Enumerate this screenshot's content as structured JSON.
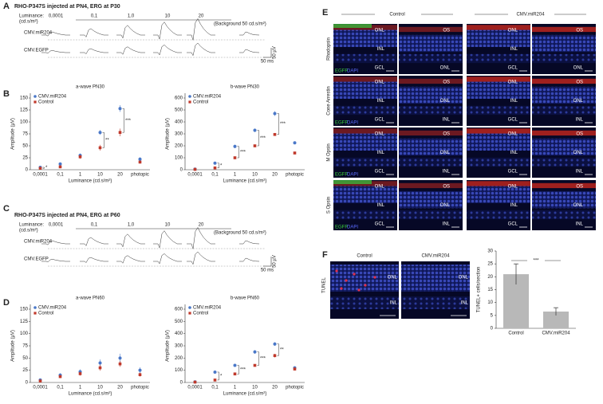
{
  "panel_labels": [
    "A",
    "B",
    "C",
    "D",
    "E",
    "F"
  ],
  "erg": [
    {
      "title": "RHO-P347S injected at PN4, ERG at P30",
      "luminance_label": [
        "Luminance:",
        "(cd.s/m²)"
      ],
      "luminances": [
        "0,0001",
        "0,1",
        "1,0",
        "10",
        "20"
      ],
      "background": "(Background 50 cd.s/m²)",
      "rows": [
        "CMV.miR204",
        "CMV.EGFP"
      ],
      "scale_y": "50 µV",
      "scale_x": "50 ms"
    },
    {
      "title": "RHO-P347S injected at PN4, ERG at P60",
      "luminance_label": [
        "Luminance:",
        "(cd.s/m²)"
      ],
      "luminances": [
        "0,0001",
        "0,1",
        "1,0",
        "10",
        "20"
      ],
      "background": "(Background 50 cd.s/m²)",
      "rows": [
        "CMV.miR204",
        "CMV.EGFP"
      ],
      "scale_y": "50 µV",
      "scale_x": "50 ms"
    }
  ],
  "chart_data": [
    {
      "type": "scatter",
      "title": "a-wave  PN30",
      "x_label": "Luminance (cd.s/m²)",
      "y_label": "Amplitude (µV)",
      "categories": [
        "0,0001",
        "0,1",
        "1",
        "10",
        "20",
        "photopic"
      ],
      "ylim": [
        0,
        150
      ],
      "yticks": [
        0,
        25,
        50,
        75,
        100,
        125,
        150
      ],
      "legend": "upper left",
      "series": [
        {
          "name": "CMV.miR204",
          "color": "#4a78c8",
          "values": [
            5,
            12,
            30,
            78,
            128,
            22
          ],
          "errors": [
            1,
            3,
            4,
            5,
            7,
            4
          ]
        },
        {
          "name": "Control",
          "color": "#c0392b",
          "values": [
            3,
            6,
            27,
            46,
            78,
            16
          ],
          "errors": [
            1,
            2,
            4,
            6,
            8,
            3
          ]
        }
      ],
      "significance": [
        "*",
        null,
        null,
        "**",
        "***",
        null
      ]
    },
    {
      "type": "scatter",
      "title": "b-wave  PN30",
      "x_label": "Luminance (cd.s/m²)",
      "y_label": "Amplitude (µV)",
      "categories": [
        "0,0001",
        "0,1",
        "1",
        "10",
        "20",
        "photopic"
      ],
      "ylim": [
        0,
        600
      ],
      "yticks": [
        0,
        100,
        200,
        300,
        400,
        500,
        600
      ],
      "legend": "upper left",
      "series": [
        {
          "name": "CMV.miR204",
          "color": "#4a78c8",
          "values": [
            5,
            55,
            195,
            330,
            470,
            225
          ],
          "errors": [
            3,
            10,
            15,
            15,
            20,
            12
          ]
        },
        {
          "name": "Control",
          "color": "#c0392b",
          "values": [
            3,
            15,
            100,
            200,
            295,
            140
          ],
          "errors": [
            2,
            5,
            8,
            8,
            10,
            10
          ]
        }
      ],
      "significance": [
        null,
        "*",
        "***",
        "***",
        "***",
        null
      ]
    },
    {
      "type": "scatter",
      "title": "a-wave  PN60",
      "x_label": "Luminance (cd.s/m²)",
      "y_label": "Amplitude (µV)",
      "categories": [
        "0,0001",
        "0,1",
        "1",
        "10",
        "20",
        "photopic"
      ],
      "ylim": [
        0,
        150
      ],
      "yticks": [
        0,
        25,
        50,
        75,
        100,
        125,
        150
      ],
      "legend": "upper left",
      "series": [
        {
          "name": "CMV.miR204",
          "color": "#4a78c8",
          "values": [
            5,
            15,
            22,
            40,
            50,
            25
          ],
          "errors": [
            1,
            4,
            5,
            7,
            9,
            6
          ]
        },
        {
          "name": "Control",
          "color": "#c0392b",
          "values": [
            3,
            12,
            18,
            30,
            38,
            16
          ],
          "errors": [
            1,
            3,
            4,
            6,
            6,
            4
          ]
        }
      ],
      "significance": [
        null,
        null,
        null,
        null,
        null,
        null
      ]
    },
    {
      "type": "scatter",
      "title": "b-wave  PN60",
      "x_label": "Luminance (cd.s/m²)",
      "y_label": "Amplitude (µV)",
      "categories": [
        "0,0001",
        "0,1",
        "1",
        "10",
        "20",
        "photopic"
      ],
      "ylim": [
        0,
        600
      ],
      "yticks": [
        0,
        100,
        200,
        300,
        400,
        500,
        600
      ],
      "legend": "upper left",
      "series": [
        {
          "name": "CMV.miR204",
          "color": "#4a78c8",
          "values": [
            5,
            85,
            140,
            250,
            315,
            120
          ],
          "errors": [
            3,
            12,
            12,
            15,
            15,
            12
          ]
        },
        {
          "name": "Control",
          "color": "#c0392b",
          "values": [
            3,
            20,
            70,
            140,
            220,
            110
          ],
          "errors": [
            2,
            6,
            8,
            8,
            15,
            10
          ]
        }
      ],
      "significance": [
        null,
        "*",
        "***",
        "***",
        "**",
        null
      ]
    },
    {
      "type": "bar",
      "y_label": "TUNEL+ cells/section",
      "categories": [
        "Control",
        "CMV.miR204"
      ],
      "values": [
        21,
        6.5
      ],
      "errors": [
        4,
        1.5
      ],
      "color": "#b8b8b8",
      "ylim": [
        0,
        30
      ],
      "yticks": [
        0,
        5,
        10,
        15,
        20,
        25,
        30
      ],
      "significance": "***"
    }
  ],
  "immuno": {
    "columns": [
      "Control",
      "CMV.miR204"
    ],
    "stain": [
      "EGFP",
      "DAPI"
    ],
    "rows": [
      {
        "name": "Rhodopsin",
        "left": [
          "ONL",
          "INL",
          "GCL"
        ],
        "right": [
          "OS",
          "ONL"
        ]
      },
      {
        "name": "Cone Arrestin",
        "left": [
          "ONL",
          "INL",
          "GCL"
        ],
        "right": [
          "OS",
          "ONL",
          "INL"
        ]
      },
      {
        "name": "M Opsin",
        "left": [
          "ONL",
          "INL",
          "GCL"
        ],
        "right": [
          "OS",
          "ONL",
          "INL"
        ]
      },
      {
        "name": "S Opsin",
        "left": [
          "ONL",
          "INL",
          "GCL"
        ],
        "right": [
          "OS",
          "ONL",
          "INL"
        ]
      }
    ]
  },
  "tunel": {
    "label": "TUNEL",
    "columns": [
      "Control",
      "CMV.miR204"
    ],
    "layers": [
      "ONL",
      "INL"
    ]
  }
}
